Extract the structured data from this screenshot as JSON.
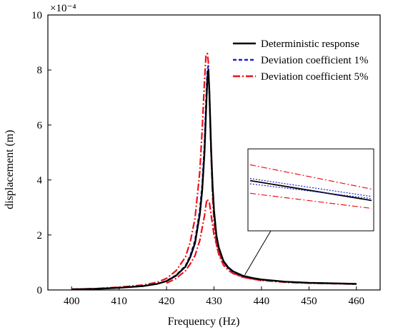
{
  "chart_data": {
    "type": "line",
    "xlabel": "Frequency (Hz)",
    "ylabel": "displacement (m)",
    "y_multiplier": "×10⁻⁴",
    "xlim": [
      395,
      465
    ],
    "ylim": [
      0,
      10
    ],
    "xticks": [
      400,
      410,
      420,
      430,
      440,
      450,
      460
    ],
    "yticks": [
      0,
      2,
      4,
      6,
      8,
      10
    ],
    "legend_position": "top-right",
    "series": [
      {
        "name": "Deterministic response",
        "color": "#000000",
        "style": "solid",
        "x": [
          400,
          405,
          410,
          415,
          418,
          420,
          422,
          424,
          425,
          426,
          427,
          427.5,
          428,
          428.3,
          428.6,
          428.8,
          429,
          429.2,
          429.4,
          429.7,
          430,
          430.5,
          431,
          432,
          433,
          434,
          436,
          438,
          440,
          445,
          450,
          455,
          460
        ],
        "values": [
          0.02,
          0.04,
          0.08,
          0.14,
          0.22,
          0.32,
          0.52,
          0.85,
          1.2,
          1.7,
          2.75,
          3.6,
          5.0,
          6.4,
          7.7,
          8.0,
          7.3,
          6.2,
          5.1,
          3.8,
          2.9,
          2.0,
          1.55,
          1.05,
          0.82,
          0.68,
          0.52,
          0.44,
          0.38,
          0.3,
          0.26,
          0.24,
          0.22
        ]
      },
      {
        "name": "Deviation coefficient 1%",
        "color": "#1f1fd6",
        "style": "dashed",
        "x": [
          400,
          405,
          410,
          415,
          418,
          420,
          422,
          424,
          425,
          426,
          427,
          427.5,
          428,
          428.3,
          428.6,
          428.8,
          429,
          429.2,
          429.4,
          429.7,
          430,
          430.5,
          431,
          432,
          433,
          434,
          436,
          438,
          440,
          445,
          450,
          455,
          460
        ],
        "values": [
          0.02,
          0.04,
          0.08,
          0.14,
          0.22,
          0.33,
          0.54,
          0.88,
          1.25,
          1.8,
          2.9,
          3.8,
          5.3,
          6.8,
          8.0,
          8.15,
          7.3,
          6.1,
          5.0,
          3.7,
          2.8,
          1.95,
          1.5,
          1.02,
          0.8,
          0.66,
          0.51,
          0.43,
          0.37,
          0.3,
          0.26,
          0.24,
          0.22
        ]
      },
      {
        "name": "Deviation coefficient 5%",
        "color": "#e8131a",
        "style": "dashdot",
        "x": [
          400,
          405,
          410,
          415,
          418,
          420,
          422,
          424,
          425,
          426,
          427,
          427.5,
          428,
          428.3,
          428.6,
          428.8,
          429,
          429.2,
          429.4,
          429.7,
          430,
          430.5,
          431,
          432,
          433,
          434,
          436,
          438,
          440,
          445,
          450,
          455,
          460
        ],
        "values": [
          0.03,
          0.05,
          0.1,
          0.18,
          0.28,
          0.42,
          0.7,
          1.2,
          1.75,
          2.6,
          4.3,
          5.8,
          7.6,
          8.5,
          8.6,
          8.3,
          7.2,
          6.0,
          4.9,
          3.4,
          2.5,
          1.65,
          1.3,
          0.9,
          0.72,
          0.6,
          0.47,
          0.4,
          0.35,
          0.28,
          0.25,
          0.23,
          0.21
        ]
      },
      {
        "name": "",
        "color": "#e8131a",
        "style": "dashdot",
        "x": [
          420,
          422,
          424,
          425,
          426,
          427,
          428,
          428.5,
          429,
          429.5,
          430,
          431,
          432,
          434,
          436,
          440
        ],
        "values": [
          0.25,
          0.42,
          0.7,
          0.95,
          1.25,
          1.8,
          2.7,
          3.3,
          3.2,
          2.6,
          2.0,
          1.35,
          0.98,
          0.62,
          0.47,
          0.34
        ]
      }
    ],
    "inset": {
      "x": [
        436,
        440
      ],
      "series_values": [
        [
          3.9,
          3.15
        ],
        [
          3.78,
          3.22
        ],
        [
          3.98,
          3.3
        ],
        [
          4.5,
          3.58
        ],
        [
          3.42,
          2.85
        ]
      ]
    }
  }
}
